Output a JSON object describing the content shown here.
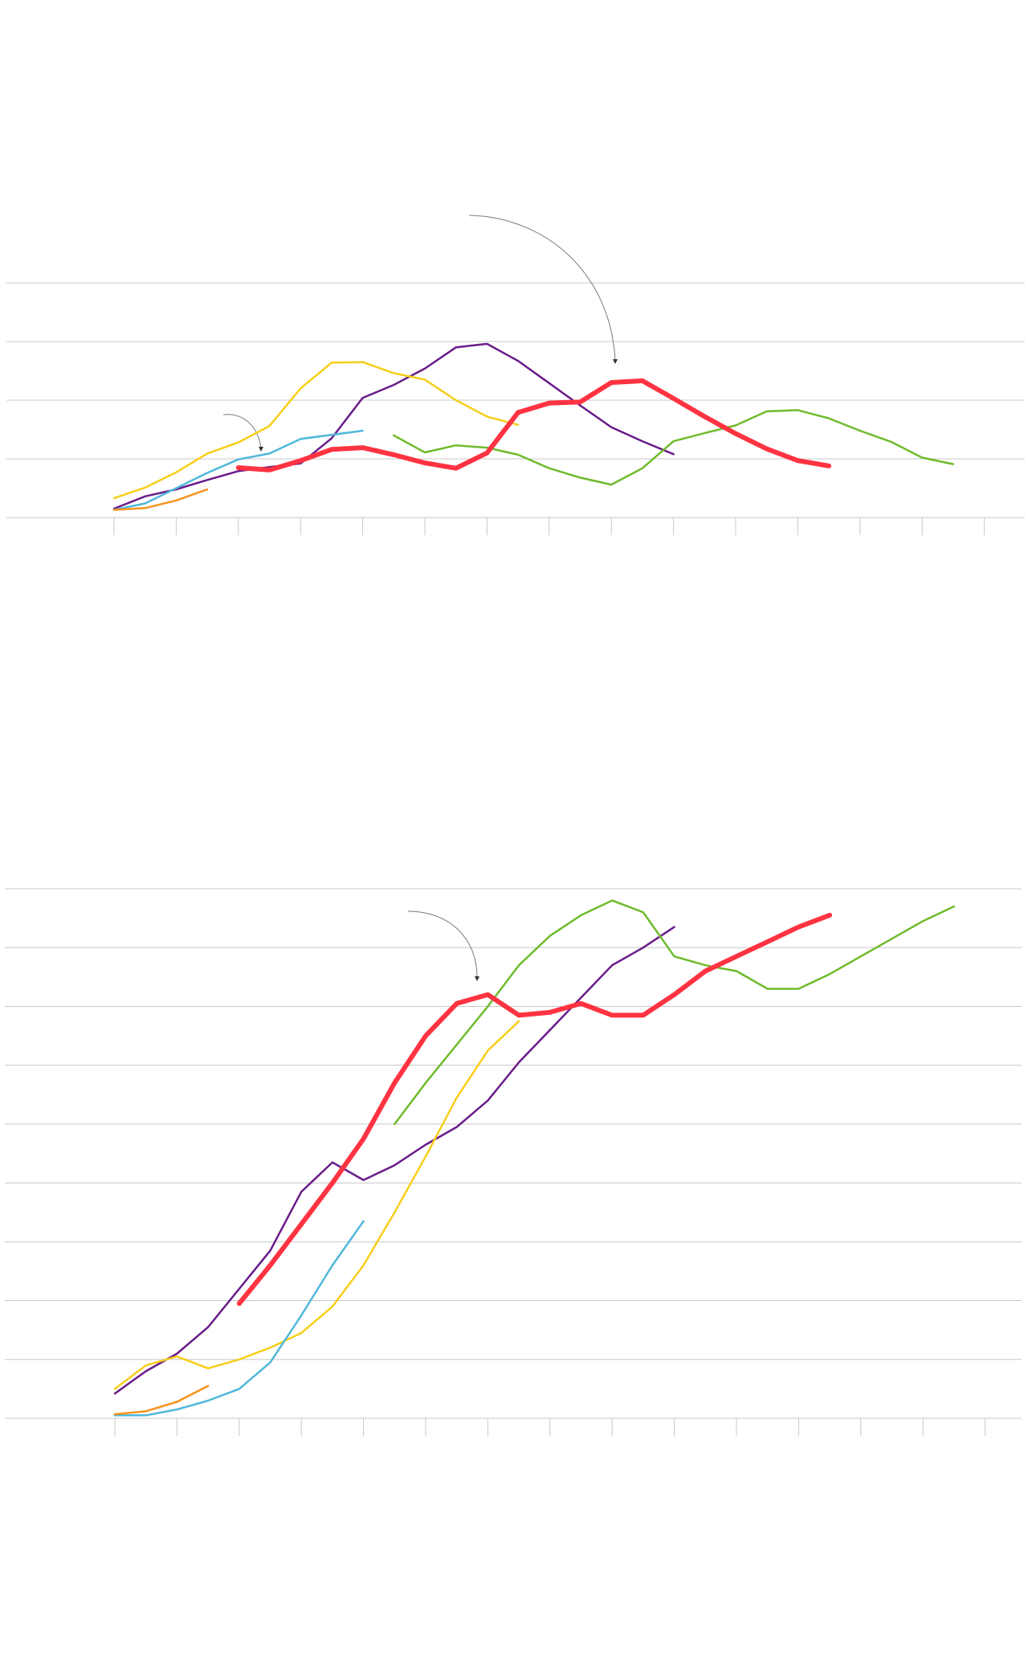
{
  "chart_data": [
    {
      "type": "line",
      "title": "",
      "xlabel": "",
      "ylabel": "",
      "x_ticks": 15,
      "grid": true,
      "ylim": [
        0,
        4
      ],
      "series": [
        {
          "color": "#FF3341",
          "highlight": true,
          "x": [
            4.0,
            4.5,
            5.0,
            5.5,
            6.0,
            6.5,
            7.0,
            7.5,
            8.0,
            8.5,
            9.0,
            9.5,
            10.0,
            10.5,
            11.0,
            11.5,
            12.0,
            12.5,
            13.0,
            13.5
          ],
          "values": [
            0.85,
            0.81,
            0.97,
            1.16,
            1.19,
            1.07,
            0.93,
            0.84,
            1.1,
            1.79,
            1.95,
            1.97,
            2.3,
            2.33,
            2.03,
            1.72,
            1.43,
            1.17,
            0.97,
            0.88
          ]
        },
        {
          "color": "#6A1C8A",
          "x": [
            2.0,
            2.5,
            3.0,
            3.5,
            4.0,
            4.5,
            5.0,
            5.5,
            6.0,
            6.5,
            7.0,
            7.5,
            8.0,
            8.5,
            9.0,
            9.5,
            10.0,
            10.5,
            11.0
          ],
          "values": [
            0.15,
            0.36,
            0.48,
            0.64,
            0.79,
            0.86,
            0.92,
            1.35,
            2.04,
            2.26,
            2.54,
            2.9,
            2.96,
            2.67,
            2.29,
            1.91,
            1.54,
            1.3,
            1.08
          ]
        },
        {
          "color": "#F7CE1A",
          "x": [
            2.0,
            2.5,
            3.0,
            3.5,
            4.0,
            4.5,
            5.0,
            5.5,
            6.0,
            6.5,
            7.0,
            7.5,
            8.0,
            8.5
          ],
          "values": [
            0.33,
            0.51,
            0.77,
            1.09,
            1.28,
            1.56,
            2.2,
            2.64,
            2.65,
            2.46,
            2.35,
            2.0,
            1.72,
            1.58
          ]
        },
        {
          "color": "#4FB8DA",
          "x": [
            2.0,
            2.5,
            3.0,
            3.5,
            4.0,
            4.5,
            5.0,
            5.5,
            6.0
          ],
          "values": [
            0.13,
            0.24,
            0.5,
            0.76,
            0.99,
            1.09,
            1.34,
            1.41,
            1.48
          ]
        },
        {
          "color": "#F7931E",
          "x": [
            2.0,
            2.5,
            3.0,
            3.5
          ],
          "values": [
            0.13,
            0.16,
            0.29,
            0.48
          ]
        },
        {
          "color": "#6EBB2B",
          "x": [
            6.5,
            7.0,
            7.5,
            8.0,
            8.5,
            9.0,
            9.5,
            10.0,
            10.5,
            11.0,
            11.5,
            12.0,
            12.5,
            13.0,
            13.5,
            14.0,
            14.5,
            15.0,
            15.5
          ],
          "values": [
            1.4,
            1.11,
            1.23,
            1.19,
            1.07,
            0.84,
            0.68,
            0.56,
            0.84,
            1.3,
            1.44,
            1.57,
            1.81,
            1.83,
            1.69,
            1.48,
            1.29,
            1.02,
            0.91
          ]
        }
      ]
    },
    {
      "type": "line",
      "title": "",
      "xlabel": "",
      "ylabel": "",
      "x_ticks": 15,
      "grid": true,
      "ylim": [
        0,
        9
      ],
      "series": [
        {
          "color": "#FF3341",
          "highlight": true,
          "x": [
            4.0,
            4.5,
            5.0,
            5.5,
            6.0,
            6.5,
            7.0,
            7.5,
            8.0,
            8.5,
            9.0,
            9.5,
            10.0,
            10.5,
            11.0,
            11.5,
            12.0,
            12.5,
            13.0,
            13.5
          ],
          "values": [
            1.95,
            2.6,
            3.3,
            4.0,
            4.75,
            5.7,
            6.5,
            7.05,
            7.2,
            6.85,
            6.9,
            7.05,
            6.85,
            6.85,
            7.2,
            7.6,
            7.85,
            8.1,
            8.35,
            8.55
          ]
        },
        {
          "color": "#6A1C8A",
          "x": [
            2.0,
            2.5,
            3.0,
            3.5,
            4.0,
            4.5,
            5.0,
            5.5,
            6.0,
            6.5,
            7.0,
            7.5,
            8.0,
            8.5,
            9.0,
            9.5,
            10.0,
            10.5,
            11.0
          ],
          "values": [
            0.42,
            0.8,
            1.1,
            1.55,
            2.2,
            2.85,
            3.85,
            4.35,
            4.05,
            4.3,
            4.65,
            4.95,
            5.4,
            6.05,
            6.6,
            7.15,
            7.7,
            8.0,
            8.35
          ]
        },
        {
          "color": "#F7CE1A",
          "x": [
            2.0,
            2.5,
            3.0,
            3.5,
            4.0,
            4.5,
            5.0,
            5.5,
            6.0,
            6.5,
            7.0,
            7.5,
            8.0,
            8.5
          ],
          "values": [
            0.5,
            0.9,
            1.05,
            0.85,
            1.0,
            1.2,
            1.45,
            1.9,
            2.6,
            3.5,
            4.45,
            5.45,
            6.25,
            6.75
          ]
        },
        {
          "color": "#4FB8DA",
          "x": [
            2.0,
            2.5,
            3.0,
            3.5,
            4.0,
            4.5,
            5.0,
            5.5,
            6.0
          ],
          "values": [
            0.05,
            0.05,
            0.15,
            0.3,
            0.5,
            0.95,
            1.75,
            2.6,
            3.35
          ]
        },
        {
          "color": "#F7931E",
          "x": [
            2.0,
            2.5,
            3.0,
            3.5
          ],
          "values": [
            0.07,
            0.12,
            0.28,
            0.55
          ]
        },
        {
          "color": "#6EBB2B",
          "x": [
            6.5,
            7.0,
            7.5,
            8.0,
            8.5,
            9.0,
            9.5,
            10.0,
            10.5,
            11.0,
            11.5,
            12.0,
            12.5,
            13.0,
            13.5,
            14.0,
            14.5,
            15.0,
            15.5
          ],
          "values": [
            5.0,
            5.7,
            6.35,
            7.0,
            7.7,
            8.2,
            8.55,
            8.8,
            8.6,
            7.85,
            7.7,
            7.6,
            7.3,
            7.3,
            7.55,
            7.85,
            8.15,
            8.45,
            8.7
          ]
        }
      ]
    }
  ]
}
